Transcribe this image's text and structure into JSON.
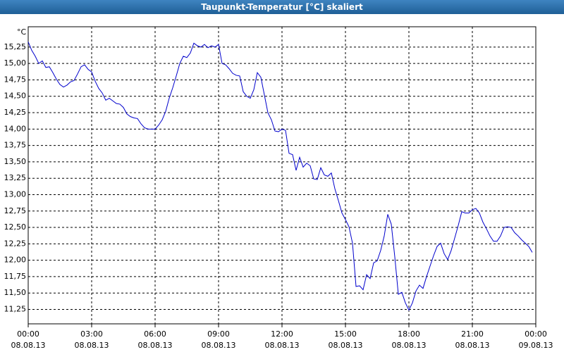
{
  "chart_data": {
    "type": "line",
    "title": "Taupunkt-Temperatur [°C] skaliert",
    "y_unit": "°C",
    "color": "#0000cc",
    "grid": true,
    "xlim": [
      0,
      1440
    ],
    "xticks": [
      {
        "value": 0,
        "label": "00:00"
      },
      {
        "value": 180,
        "label": "03:00"
      },
      {
        "value": 360,
        "label": "06:00"
      },
      {
        "value": 540,
        "label": "09:00"
      },
      {
        "value": 720,
        "label": "12:00"
      },
      {
        "value": 900,
        "label": "15:00"
      },
      {
        "value": 1080,
        "label": "18:00"
      },
      {
        "value": 1260,
        "label": "21:00"
      },
      {
        "value": 1440,
        "label": "00:00"
      }
    ],
    "xtick_dates": [
      "08.08.13",
      "08.08.13",
      "08.08.13",
      "08.08.13",
      "08.08.13",
      "08.08.13",
      "08.08.13",
      "08.08.13",
      "09.08.13"
    ],
    "ylim": [
      11.03,
      15.56
    ],
    "yticks": [
      {
        "value": 11.25,
        "label": "11,25"
      },
      {
        "value": 11.5,
        "label": "11,50"
      },
      {
        "value": 11.75,
        "label": "11,75"
      },
      {
        "value": 12,
        "label": "12,00"
      },
      {
        "value": 12.25,
        "label": "12,25"
      },
      {
        "value": 12.5,
        "label": "12,50"
      },
      {
        "value": 12.75,
        "label": "12,75"
      },
      {
        "value": 13,
        "label": "13,00"
      },
      {
        "value": 13.25,
        "label": "13,25"
      },
      {
        "value": 13.5,
        "label": "13,50"
      },
      {
        "value": 13.75,
        "label": "13,75"
      },
      {
        "value": 14,
        "label": "14,00"
      },
      {
        "value": 14.25,
        "label": "14,25"
      },
      {
        "value": 14.5,
        "label": "14,50"
      },
      {
        "value": 14.75,
        "label": "14,75"
      },
      {
        "value": 15,
        "label": "15,00"
      },
      {
        "value": 15.25,
        "label": "15,25"
      }
    ],
    "x": [
      0,
      10,
      20,
      30,
      40,
      50,
      60,
      70,
      80,
      90,
      100,
      110,
      120,
      130,
      140,
      150,
      160,
      170,
      180,
      190,
      200,
      210,
      220,
      230,
      240,
      250,
      260,
      270,
      280,
      290,
      300,
      310,
      320,
      330,
      340,
      350,
      360,
      370,
      380,
      390,
      400,
      410,
      420,
      430,
      440,
      450,
      460,
      470,
      480,
      490,
      500,
      510,
      520,
      530,
      540,
      550,
      560,
      570,
      580,
      590,
      600,
      610,
      620,
      630,
      640,
      650,
      660,
      670,
      680,
      690,
      700,
      710,
      720,
      730,
      740,
      750,
      760,
      770,
      780,
      790,
      800,
      810,
      820,
      830,
      840,
      850,
      860,
      870,
      880,
      890,
      900,
      910,
      920,
      930,
      940,
      950,
      960,
      970,
      980,
      990,
      1000,
      1010,
      1020,
      1030,
      1040,
      1050,
      1060,
      1070,
      1080,
      1090,
      1100,
      1110,
      1120,
      1130,
      1140,
      1150,
      1160,
      1170,
      1180,
      1190,
      1200,
      1210,
      1220,
      1230,
      1240,
      1250,
      1260,
      1270,
      1280,
      1290,
      1300,
      1310,
      1320,
      1330,
      1340,
      1350,
      1360,
      1370,
      1380,
      1390,
      1400,
      1410,
      1420,
      1430
    ],
    "values": [
      15.33,
      15.2,
      15.11,
      15.0,
      15.04,
      14.94,
      14.95,
      14.86,
      14.76,
      14.68,
      14.64,
      14.67,
      14.72,
      14.74,
      14.84,
      14.95,
      14.98,
      14.91,
      14.87,
      14.73,
      14.62,
      14.55,
      14.44,
      14.47,
      14.43,
      14.39,
      14.38,
      14.33,
      14.23,
      14.19,
      14.17,
      14.16,
      14.08,
      14.02,
      14.0,
      14.0,
      14.0,
      14.06,
      14.14,
      14.27,
      14.47,
      14.63,
      14.81,
      15.0,
      15.11,
      15.09,
      15.16,
      15.31,
      15.27,
      15.25,
      15.29,
      15.24,
      15.27,
      15.25,
      15.29,
      15.0,
      14.98,
      14.92,
      14.85,
      14.82,
      14.81,
      14.57,
      14.5,
      14.47,
      14.6,
      14.86,
      14.79,
      14.52,
      14.25,
      14.14,
      13.97,
      13.96,
      14.0,
      13.98,
      13.63,
      13.61,
      13.37,
      13.57,
      13.42,
      13.48,
      13.44,
      13.24,
      13.23,
      13.41,
      13.3,
      13.28,
      13.33,
      13.09,
      12.91,
      12.72,
      12.62,
      12.51,
      12.26,
      11.6,
      11.61,
      11.55,
      11.78,
      11.72,
      11.96,
      11.99,
      12.15,
      12.37,
      12.7,
      12.55,
      12.05,
      11.48,
      11.51,
      11.35,
      11.24,
      11.35,
      11.53,
      11.62,
      11.57,
      11.75,
      11.91,
      12.07,
      12.21,
      12.26,
      12.1,
      12.01,
      12.15,
      12.34,
      12.53,
      12.74,
      12.72,
      12.72,
      12.77,
      12.79,
      12.72,
      12.58,
      12.48,
      12.37,
      12.29,
      12.29,
      12.37,
      12.5,
      12.51,
      12.5,
      12.42,
      12.37,
      12.31,
      12.26,
      12.21,
      12.12
    ]
  }
}
